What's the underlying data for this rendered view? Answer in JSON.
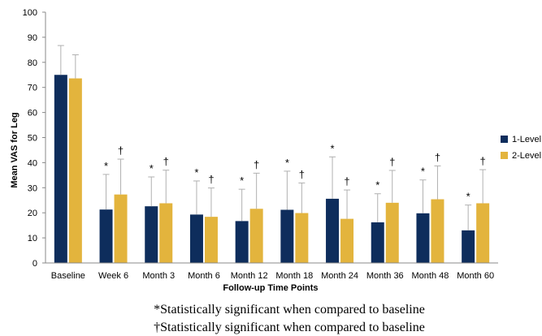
{
  "chart_data": {
    "type": "bar",
    "title": "",
    "ylabel": "Mean VAS for Leg",
    "xlabel": "Follow-up Time Points",
    "ylim": [
      0,
      100
    ],
    "yticks": [
      "0",
      "10",
      "20",
      "30",
      "40",
      "50",
      "60",
      "70",
      "80",
      "90",
      "100"
    ],
    "categories": [
      "Baseline",
      "Week 6",
      "Month 3",
      "Month 6",
      "Month 12",
      "Month 18",
      "Month 24",
      "Month 36",
      "Month 48",
      "Month 60"
    ],
    "series": [
      {
        "name": "1-Level",
        "color": "#0e2d5c",
        "values": [
          75,
          21.3,
          22.6,
          19.3,
          16.7,
          21.2,
          25.6,
          16.2,
          19.8,
          13
        ],
        "error_upper": [
          86.7,
          35.3,
          34.3,
          32.7,
          29.4,
          36.6,
          42.3,
          27.6,
          33.1,
          23.1
        ],
        "marker": [
          "",
          "*",
          "*",
          "*",
          "*",
          "*",
          "*",
          "*",
          "*",
          "*"
        ]
      },
      {
        "name": "2-Level",
        "color": "#e3b43d",
        "values": [
          73.6,
          27.3,
          23.8,
          18.4,
          21.6,
          19.9,
          17.6,
          24,
          25.4,
          23.8
        ],
        "error_upper": [
          83,
          41.4,
          37,
          29.9,
          35.8,
          31.9,
          29.1,
          36.9,
          38.7,
          37.2
        ],
        "marker": [
          "",
          "†",
          "†",
          "†",
          "†",
          "†",
          "†",
          "†",
          "†",
          "†"
        ]
      }
    ],
    "legend": {
      "placement": "right"
    },
    "grid": false,
    "footnotes": [
      "*Statistically significant when compared to baseline",
      "†Statistically significant when compared to baseline"
    ]
  }
}
